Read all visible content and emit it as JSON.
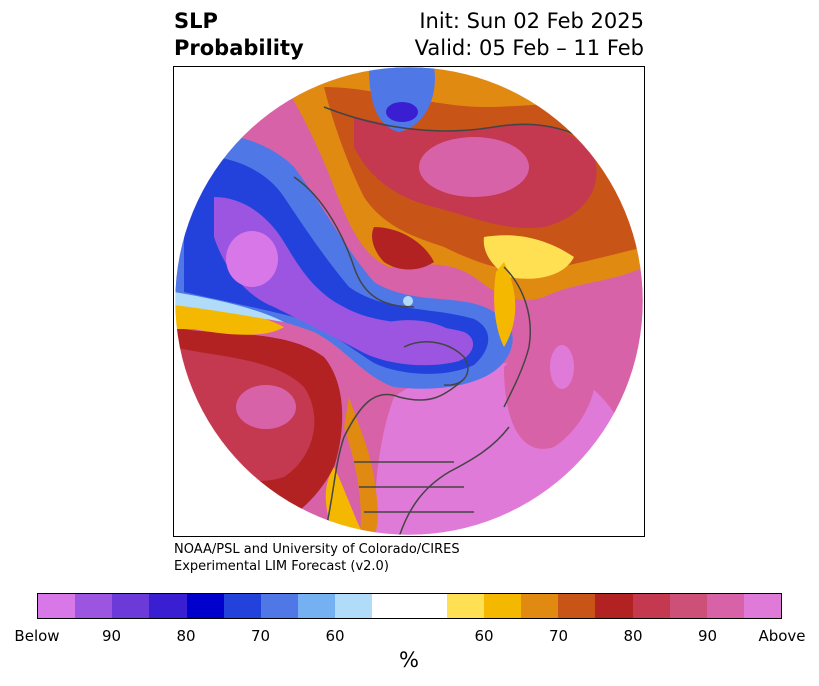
{
  "title": {
    "left_line1": "SLP",
    "left_line2": "Probability",
    "right_line1": "Init: Sun 02 Feb 2025",
    "right_line2": "Valid: 05 Feb – 11 Feb"
  },
  "credit": {
    "line1": "NOAA/PSL and University of Colorado/CIRES",
    "line2": "Experimental LIM Forecast (v2.0)"
  },
  "colorbar": {
    "unit": "%",
    "colors": [
      "#d877e8",
      "#9b55e0",
      "#6c3ad8",
      "#3a1fd2",
      "#0000cc",
      "#2342dc",
      "#4f78e6",
      "#74b0f2",
      "#b0dcfa",
      "#ffffff",
      "#ffffff",
      "#ffe052",
      "#f5b800",
      "#e08a12",
      "#c85418",
      "#b22222",
      "#c43850",
      "#cc5078",
      "#d862a8",
      "#e07ad8"
    ],
    "ticks": [
      {
        "label": "Below",
        "idx": 0
      },
      {
        "label": "90",
        "idx": 2
      },
      {
        "label": "80",
        "idx": 4
      },
      {
        "label": "70",
        "idx": 6
      },
      {
        "label": "60",
        "idx": 8
      },
      {
        "label": "60",
        "idx": 12
      },
      {
        "label": "70",
        "idx": 14
      },
      {
        "label": "80",
        "idx": 16
      },
      {
        "label": "90",
        "idx": 18
      },
      {
        "label": "Above",
        "idx": 20
      }
    ]
  },
  "map": {
    "projection": "north-polar stereographic",
    "colors": {
      "below_dark": "#3a1fd2",
      "below_mid": "#2342dc",
      "below_light": "#4f78e6",
      "below_pale": "#b0dcfa",
      "below_purple": "#9b55e0",
      "below_violet": "#d877e8",
      "above_yellow": "#ffe052",
      "above_gold": "#f5b800",
      "above_orange": "#e08a12",
      "above_rust": "#c85418",
      "above_red": "#b22222",
      "above_rose": "#c43850",
      "above_pink": "#d862a8",
      "above_magenta": "#e07ad8",
      "coast": "#444444"
    }
  }
}
